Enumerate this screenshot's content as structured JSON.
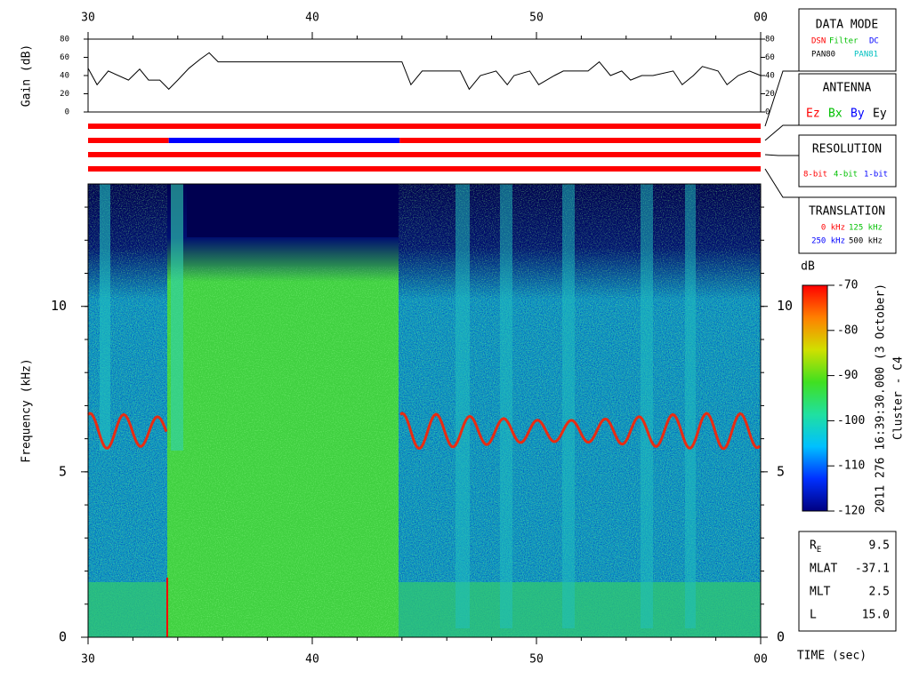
{
  "chart_data": {
    "type": "spectrogram",
    "xlim": [
      30,
      60
    ],
    "xticks": [
      30,
      40,
      50,
      {
        "value": 60,
        "label": "00"
      }
    ],
    "xlabel": "TIME (sec)",
    "ylabel": "Frequency (kHz)",
    "ylim": [
      0,
      13.7
    ],
    "yticks": [
      0,
      5,
      10
    ],
    "colorbar": {
      "label": "dB",
      "lim": [
        -120,
        -70
      ],
      "ticks": [
        -120,
        -110,
        -100,
        -90,
        -80,
        -70
      ],
      "colors": [
        "#000080",
        "#0030ff",
        "#00c0ff",
        "#20e0a0",
        "#40e020",
        "#d0e000",
        "#ff8000",
        "#ff0000"
      ]
    },
    "gain": {
      "type": "line",
      "ylabel": "Gain (dB)",
      "ylim": [
        0,
        80
      ],
      "yticks": [
        0,
        20,
        40,
        60,
        80
      ],
      "color": "#000000",
      "x": [
        30,
        30.4,
        30.9,
        31.8,
        32.3,
        32.7,
        33.2,
        33.6,
        34.0,
        34.5,
        35.0,
        35.4,
        35.8,
        44.0,
        44.4,
        44.9,
        45.6,
        46.6,
        47.0,
        47.5,
        48.2,
        48.7,
        49.0,
        49.7,
        50.1,
        50.8,
        51.2,
        52.3,
        52.8,
        53.3,
        53.8,
        54.2,
        54.7,
        55.2,
        56.1,
        56.5,
        57.0,
        57.4,
        58.1,
        58.5,
        59.0,
        59.5,
        60
      ],
      "values": [
        48,
        30,
        45,
        35,
        47,
        35,
        35,
        25,
        35,
        48,
        58,
        65,
        55,
        55,
        30,
        45,
        45,
        45,
        25,
        40,
        45,
        30,
        40,
        45,
        30,
        40,
        45,
        45,
        55,
        40,
        45,
        35,
        40,
        40,
        45,
        30,
        40,
        50,
        45,
        30,
        40,
        45,
        40
      ]
    },
    "status_bars": [
      {
        "segments": [
          {
            "start": 30,
            "end": 60,
            "color": "#ff0000"
          }
        ]
      },
      {
        "segments": [
          {
            "start": 30,
            "end": 33.6,
            "color": "#ff0000"
          },
          {
            "start": 33.6,
            "end": 43.9,
            "color": "#0000ff"
          },
          {
            "start": 43.9,
            "end": 60,
            "color": "#ff0000"
          }
        ]
      },
      {
        "segments": [
          {
            "start": 30,
            "end": 60,
            "color": "#ff0000"
          }
        ]
      },
      {
        "segments": [
          {
            "start": 30,
            "end": 60,
            "color": "#ff0000"
          }
        ]
      }
    ],
    "caption": "2011 276 16:39:30.000 (3 October)",
    "spacecraft": "Cluster - C4"
  },
  "legend": {
    "data_mode": {
      "title": "DATA MODE",
      "items": [
        "DSN",
        "Filter",
        "DC",
        "PAN80",
        "PAN81"
      ]
    },
    "antenna": {
      "title": "ANTENNA",
      "items": [
        "Ez",
        "Bx",
        "By",
        "Ey"
      ]
    },
    "resolution": {
      "title": "RESOLUTION",
      "items": [
        "8-bit",
        "4-bit",
        "1-bit"
      ]
    },
    "translation": {
      "title": "TRANSLATION",
      "items": [
        "0 kHz",
        "125 kHz",
        "250 kHz",
        "500 kHz"
      ]
    }
  },
  "orbit": [
    {
      "label": "R",
      "sub": "E",
      "value": "9.5"
    },
    {
      "label": "MLAT",
      "value": "-37.1"
    },
    {
      "label": "MLT",
      "value": "2.5"
    },
    {
      "label": "L",
      "value": "15.0"
    }
  ]
}
